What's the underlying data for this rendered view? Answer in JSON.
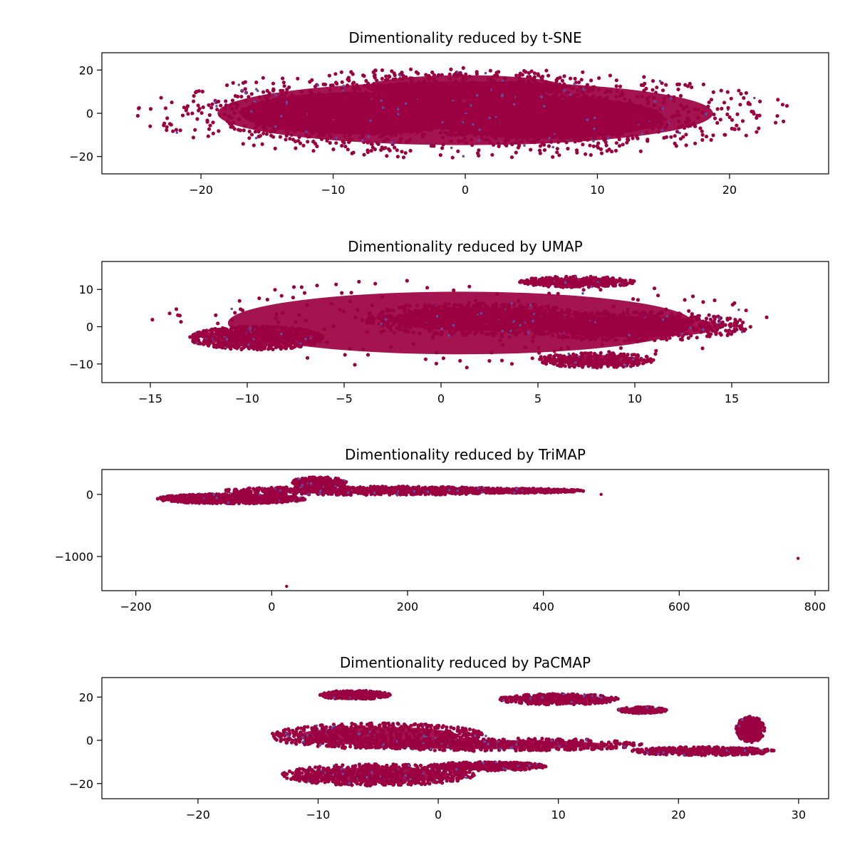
{
  "colors": {
    "majority": "#9b0041",
    "minority": "#5e4fa2"
  },
  "chart_data": [
    {
      "type": "scatter",
      "title": "Dimentionality reduced by t-SNE",
      "xlim": [
        -27.5,
        27.5
      ],
      "ylim": [
        -28,
        28
      ],
      "xticks": [
        -20,
        -10,
        0,
        10,
        20
      ],
      "xtick_labels": [
        "−20",
        "−10",
        "0",
        "10",
        "20"
      ],
      "yticks": [
        -20,
        0,
        20
      ],
      "ytick_labels": [
        "−20",
        "0",
        "20"
      ],
      "regions": [
        {
          "cx": 0,
          "cy": 0,
          "rx": 25,
          "ry": 21,
          "weight": 1.0
        },
        {
          "cx": -8,
          "cy": 0,
          "rx": 12,
          "ry": 14,
          "weight": 0.6
        },
        {
          "cx": 6,
          "cy": -2,
          "rx": 12,
          "ry": 14,
          "weight": 0.6
        },
        {
          "cx": 0,
          "cy": 12,
          "rx": 10,
          "ry": 8,
          "weight": 0.4
        }
      ]
    },
    {
      "type": "scatter",
      "title": "Dimentionality reduced by UMAP",
      "xlim": [
        -17.5,
        20
      ],
      "ylim": [
        -15,
        17.5
      ],
      "xticks": [
        -15,
        -10,
        -5,
        0,
        5,
        10,
        15
      ],
      "xtick_labels": [
        "−15",
        "−10",
        "−5",
        "0",
        "5",
        "10",
        "15"
      ],
      "yticks": [
        -10,
        0,
        10
      ],
      "ytick_labels": [
        "−10",
        "0",
        "10"
      ],
      "regions": [
        {
          "cx": -9.5,
          "cy": -3,
          "rx": 3.5,
          "ry": 3.2,
          "weight": 1.0
        },
        {
          "cx": 2,
          "cy": 2,
          "rx": 6,
          "ry": 4.5,
          "weight": 1.0
        },
        {
          "cx": 10,
          "cy": 0,
          "rx": 6,
          "ry": 4,
          "weight": 0.7
        },
        {
          "cx": 7,
          "cy": 12,
          "rx": 3,
          "ry": 1.5,
          "weight": 0.4
        },
        {
          "cx": 8,
          "cy": -9,
          "rx": 3,
          "ry": 2,
          "weight": 0.4
        },
        {
          "cx": 1,
          "cy": 1,
          "rx": 16,
          "ry": 12,
          "weight": 0.3
        }
      ]
    },
    {
      "type": "scatter",
      "title": "Dimentionality reduced by TriMAP",
      "xlim": [
        -250,
        820
      ],
      "ylim": [
        -1550,
        400
      ],
      "xticks": [
        -200,
        0,
        200,
        400,
        600,
        800
      ],
      "xtick_labels": [
        "−200",
        "0",
        "200",
        "400",
        "600",
        "800"
      ],
      "yticks": [
        -1000,
        0
      ],
      "ytick_labels": [
        "−1000",
        "0"
      ],
      "regions": [
        {
          "cx": -60,
          "cy": -70,
          "rx": 110,
          "ry": 80,
          "weight": 1.0
        },
        {
          "cx": 150,
          "cy": 60,
          "rx": 220,
          "ry": 70,
          "weight": 1.0
        },
        {
          "cx": 320,
          "cy": 60,
          "rx": 140,
          "ry": 40,
          "weight": 0.6
        },
        {
          "cx": 70,
          "cy": 200,
          "rx": 40,
          "ry": 80,
          "weight": 0.3
        }
      ],
      "outliers": [
        [
          775,
          -1030
        ],
        [
          22,
          -1480
        ],
        [
          485,
          0
        ]
      ]
    },
    {
      "type": "scatter",
      "title": "Dimentionality reduced by PaCMAP",
      "xlim": [
        -28,
        32.5
      ],
      "ylim": [
        -27,
        29
      ],
      "xticks": [
        -20,
        -10,
        0,
        10,
        20,
        30
      ],
      "xtick_labels": [
        "−20",
        "−10",
        "0",
        "10",
        "20",
        "30"
      ],
      "yticks": [
        -20,
        0,
        20
      ],
      "ytick_labels": [
        "−20",
        "0",
        "20"
      ],
      "regions": [
        {
          "cx": -5,
          "cy": 2,
          "rx": 9,
          "ry": 6,
          "weight": 1.0
        },
        {
          "cx": 5,
          "cy": -2,
          "rx": 12,
          "ry": 3,
          "weight": 0.8
        },
        {
          "cx": 22,
          "cy": -5,
          "rx": 6,
          "ry": 2,
          "weight": 0.5
        },
        {
          "cx": -5,
          "cy": -16,
          "rx": 8,
          "ry": 5,
          "weight": 1.0
        },
        {
          "cx": 4,
          "cy": -12,
          "rx": 5,
          "ry": 2,
          "weight": 0.5
        },
        {
          "cx": -7,
          "cy": 21,
          "rx": 3,
          "ry": 2,
          "weight": 0.5
        },
        {
          "cx": 10,
          "cy": 19,
          "rx": 5,
          "ry": 2.5,
          "weight": 0.5
        },
        {
          "cx": 17,
          "cy": 14,
          "rx": 2,
          "ry": 1.5,
          "weight": 0.3
        },
        {
          "cx": 26,
          "cy": 5,
          "rx": 1.2,
          "ry": 6,
          "weight": 0.4
        }
      ]
    }
  ]
}
